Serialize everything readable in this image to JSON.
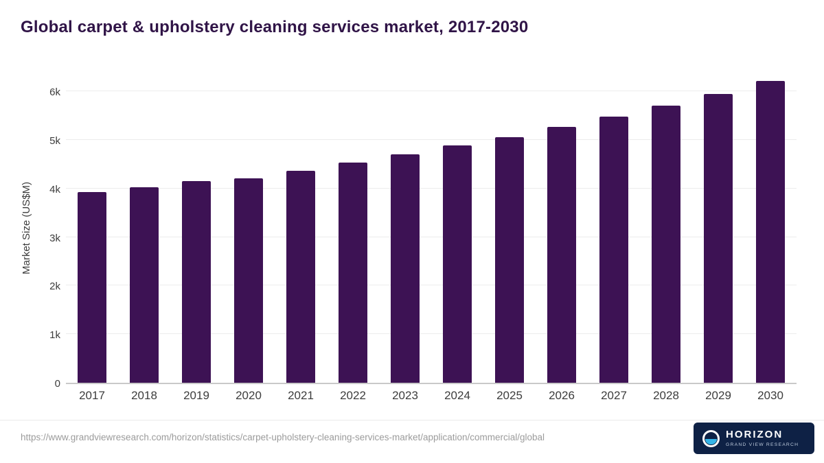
{
  "title": "Global carpet & upholstery cleaning services market, 2017-2030",
  "chart_data": {
    "type": "bar",
    "categories": [
      "2017",
      "2018",
      "2019",
      "2020",
      "2021",
      "2022",
      "2023",
      "2024",
      "2025",
      "2026",
      "2027",
      "2028",
      "2029",
      "2030"
    ],
    "values": [
      3930,
      4030,
      4150,
      4210,
      4370,
      4530,
      4700,
      4880,
      5060,
      5260,
      5480,
      5710,
      5950,
      6210
    ],
    "title": "Global carpet & upholstery cleaning services market, 2017-2030",
    "xlabel": "",
    "ylabel": "Market Size (US$M)",
    "ylim": [
      0,
      6000
    ],
    "yticks": [
      0,
      1000,
      2000,
      3000,
      4000,
      5000,
      6000
    ],
    "ytick_labels": [
      "0",
      "1k",
      "2k",
      "3k",
      "4k",
      "5k",
      "6k"
    ],
    "grid": true,
    "legend": "none",
    "bar_color": "#3d1254"
  },
  "footer": {
    "source_url": "https://www.grandviewresearch.com/horizon/statistics/carpet-upholstery-cleaning-services-market/application/commercial/global",
    "brand": {
      "name": "HORIZON",
      "subtitle": "GRAND VIEW RESEARCH"
    }
  },
  "colors": {
    "title": "#301447",
    "bar": "#3d1254",
    "badge_background": "#0e2145",
    "logo_accent": "#35b5e8"
  }
}
